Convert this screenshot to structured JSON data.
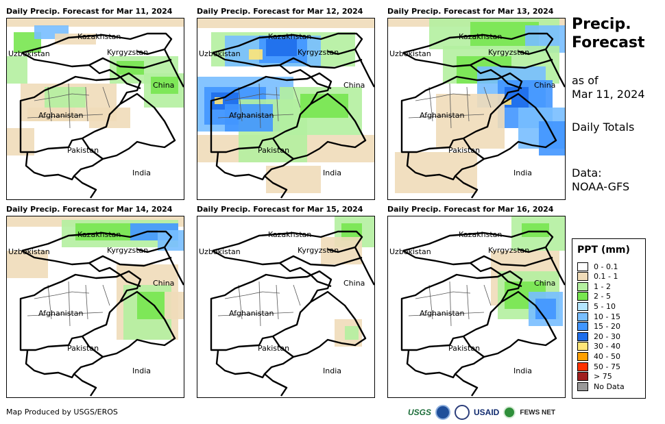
{
  "panels": [
    {
      "title": "Daily Precip. Forecast for Mar 11, 2024",
      "precip_level": "moderate-west"
    },
    {
      "title": "Daily Precip. Forecast for Mar 12, 2024",
      "precip_level": "heavy"
    },
    {
      "title": "Daily Precip. Forecast for Mar 13, 2024",
      "precip_level": "moderate-east"
    },
    {
      "title": "Daily Precip. Forecast for Mar 14, 2024",
      "precip_level": "light-north"
    },
    {
      "title": "Daily Precip. Forecast for Mar 15, 2024",
      "precip_level": "minimal"
    },
    {
      "title": "Daily Precip. Forecast for Mar 16, 2024",
      "precip_level": "light-east"
    }
  ],
  "labels": {
    "kazakhstan": "Kazakhstan",
    "uzbekistan": "Uzbekistan",
    "kyrgyzstan": "Kyrgyzstan",
    "china": "China",
    "afghanistan": "Afghanistan",
    "pakistan": "Pakistan",
    "india": "India"
  },
  "side": {
    "title_line1": "Precip.",
    "title_line2": "Forecast",
    "asof_line1": "as of",
    "asof_line2": "Mar 11, 2024",
    "totals": "Daily Totals",
    "data_line1": "Data:",
    "data_line2": "NOAA-GFS"
  },
  "legend": {
    "title": "PPT (mm)",
    "items": [
      {
        "label": "0 - 0.1",
        "color": "#ffffff"
      },
      {
        "label": "0.1 - 1",
        "color": "#f0dcb9"
      },
      {
        "label": "1 - 2",
        "color": "#b4f0a0"
      },
      {
        "label": "2 - 5",
        "color": "#78e650"
      },
      {
        "label": "5 - 10",
        "color": "#b4e6ff"
      },
      {
        "label": "10 - 15",
        "color": "#78beff"
      },
      {
        "label": "15 - 20",
        "color": "#4196ff"
      },
      {
        "label": "20 - 30",
        "color": "#1e6eeb"
      },
      {
        "label": "30 - 40",
        "color": "#ffe678"
      },
      {
        "label": "40 - 50",
        "color": "#ffa000"
      },
      {
        "label": "50 - 75",
        "color": "#ff3200"
      },
      {
        "label": "> 75",
        "color": "#a01e1e"
      },
      {
        "label": "No Data",
        "color": "#999999"
      }
    ]
  },
  "footer": {
    "credit": "Map Produced by USGS/EROS",
    "logo_usgs": "USGS",
    "logo_usaid": "USAID",
    "logo_fews": "FEWS NET"
  }
}
